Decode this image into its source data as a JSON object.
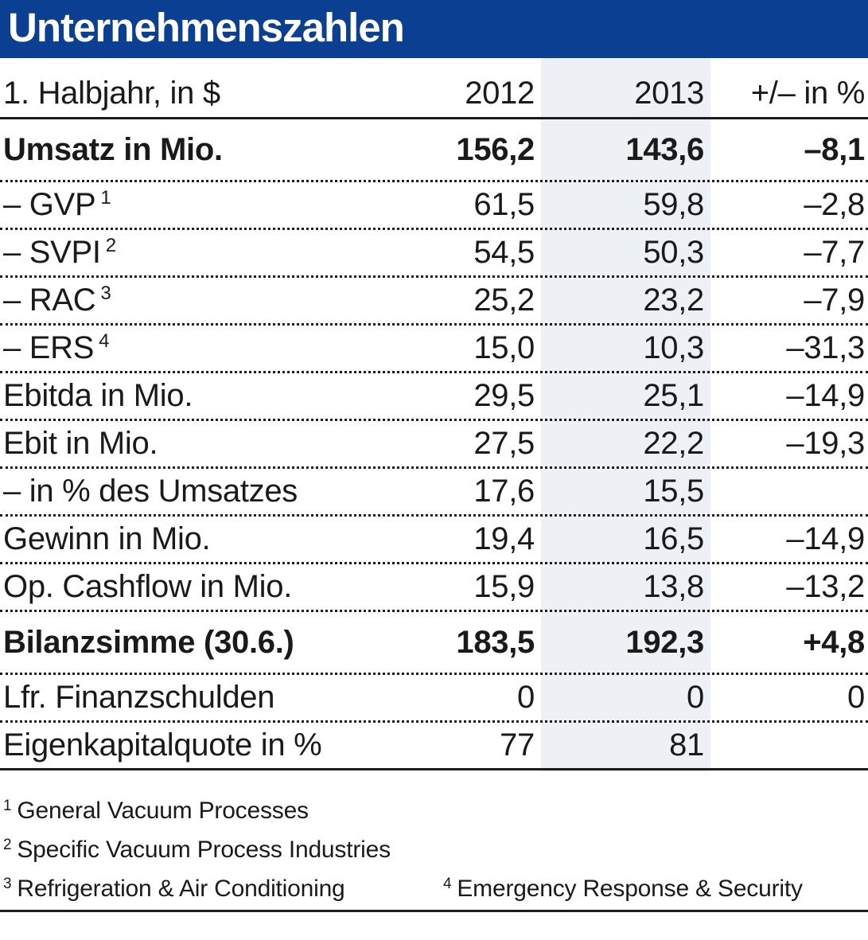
{
  "title": "Unternehmenszahlen",
  "colors": {
    "title_bar_bg": "#0a3f91",
    "title_text": "#ffffff",
    "highlight_column_bg": "#edf1f6",
    "text": "#1a1a1a"
  },
  "table": {
    "header": {
      "label": "1. Halbjahr, in $",
      "col2012": "2012",
      "col2013": "2013",
      "colChange": "+/– in %"
    },
    "rows": [
      {
        "label": "Umsatz in Mio.",
        "sup": "",
        "v2012": "156,2",
        "v2013": "143,6",
        "change": "–8,1",
        "emphasis": true,
        "section_start": true
      },
      {
        "label": "– GVP",
        "sup": "1",
        "v2012": "61,5",
        "v2013": "59,8",
        "change": "–2,8"
      },
      {
        "label": "– SVPI",
        "sup": "2",
        "v2012": "54,5",
        "v2013": "50,3",
        "change": "–7,7"
      },
      {
        "label": "– RAC",
        "sup": "3",
        "v2012": "25,2",
        "v2013": "23,2",
        "change": "–7,9"
      },
      {
        "label": "– ERS",
        "sup": "4",
        "v2012": "15,0",
        "v2013": "10,3",
        "change": "–31,3"
      },
      {
        "label": "Ebitda in Mio.",
        "sup": "",
        "v2012": "29,5",
        "v2013": "25,1",
        "change": "–14,9"
      },
      {
        "label": "Ebit in Mio.",
        "sup": "",
        "v2012": "27,5",
        "v2013": "22,2",
        "change": "–19,3"
      },
      {
        "label": "– in % des Umsatzes",
        "sup": "",
        "v2012": "17,6",
        "v2013": "15,5",
        "change": ""
      },
      {
        "label": "Gewinn in Mio.",
        "sup": "",
        "v2012": "19,4",
        "v2013": "16,5",
        "change": "–14,9"
      },
      {
        "label": "Op. Cashflow in Mio.",
        "sup": "",
        "v2012": "15,9",
        "v2013": "13,8",
        "change": "–13,2"
      },
      {
        "label": "Bilanzsimme (30.6.)",
        "sup": "",
        "v2012": "183,5",
        "v2013": "192,3",
        "change": "+4,8",
        "emphasis": true,
        "section_start": true
      },
      {
        "label": "Lfr. Finanzschulden",
        "sup": "",
        "v2012": "0",
        "v2013": "0",
        "change": "0"
      },
      {
        "label": "Eigenkapitalquote in %",
        "sup": "",
        "v2012": "77",
        "v2013": "81",
        "change": ""
      }
    ]
  },
  "footnotes": [
    {
      "sup": "1",
      "text": "General Vacuum Processes"
    },
    {
      "sup": "2",
      "text": "Specific Vacuum Process Industries"
    },
    {
      "sup": "3",
      "text": "Refrigeration & Air Conditioning"
    },
    {
      "sup": "4",
      "text": "Emergency Response & Security"
    }
  ],
  "chart_data": {
    "type": "table",
    "title": "Unternehmenszahlen",
    "columns": [
      "1. Halbjahr, in $",
      "2012",
      "2013",
      "+/– in %"
    ],
    "rows": [
      [
        "Umsatz in Mio.",
        156.2,
        143.6,
        -8.1
      ],
      [
        "GVP",
        61.5,
        59.8,
        -2.8
      ],
      [
        "SVPI",
        54.5,
        50.3,
        -7.7
      ],
      [
        "RAC",
        25.2,
        23.2,
        -7.9
      ],
      [
        "ERS",
        15.0,
        10.3,
        -31.3
      ],
      [
        "Ebitda in Mio.",
        29.5,
        25.1,
        -14.9
      ],
      [
        "Ebit in Mio.",
        27.5,
        22.2,
        -19.3
      ],
      [
        "in % des Umsatzes",
        17.6,
        15.5,
        null
      ],
      [
        "Gewinn in Mio.",
        19.4,
        16.5,
        -14.9
      ],
      [
        "Op. Cashflow in Mio.",
        15.9,
        13.8,
        -13.2
      ],
      [
        "Bilanzsimme (30.6.)",
        183.5,
        192.3,
        4.8
      ],
      [
        "Lfr. Finanzschulden",
        0,
        0,
        0
      ],
      [
        "Eigenkapitalquote in %",
        77,
        81,
        null
      ]
    ],
    "notes": "Values in $; emphasized section rows: Umsatz in Mio., Bilanzsimme (30.6.); 2013 column highlighted"
  }
}
